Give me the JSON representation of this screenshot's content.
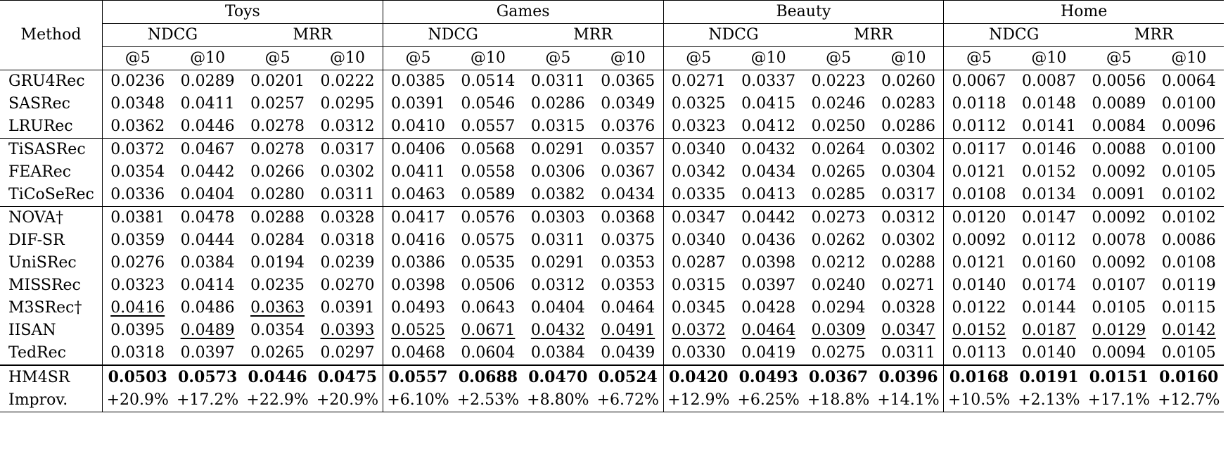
{
  "method_label": "Method",
  "datasets": [
    "Toys",
    "Games",
    "Beauty",
    "Home"
  ],
  "metrics": [
    "NDCG",
    "MRR"
  ],
  "cutoffs": [
    "@5",
    "@10"
  ],
  "groups": [
    [
      {
        "name": "GRU4Rec",
        "values": [
          "0.0236",
          "0.0289",
          "0.0201",
          "0.0222",
          "0.0385",
          "0.0514",
          "0.0311",
          "0.0365",
          "0.0271",
          "0.0337",
          "0.0223",
          "0.0260",
          "0.0067",
          "0.0087",
          "0.0056",
          "0.0064"
        ]
      },
      {
        "name": "SASRec",
        "values": [
          "0.0348",
          "0.0411",
          "0.0257",
          "0.0295",
          "0.0391",
          "0.0546",
          "0.0286",
          "0.0349",
          "0.0325",
          "0.0415",
          "0.0246",
          "0.0283",
          "0.0118",
          "0.0148",
          "0.0089",
          "0.0100"
        ]
      },
      {
        "name": "LRURec",
        "values": [
          "0.0362",
          "0.0446",
          "0.0278",
          "0.0312",
          "0.0410",
          "0.0557",
          "0.0315",
          "0.0376",
          "0.0323",
          "0.0412",
          "0.0250",
          "0.0286",
          "0.0112",
          "0.0141",
          "0.0084",
          "0.0096"
        ]
      }
    ],
    [
      {
        "name": "TiSASRec",
        "values": [
          "0.0372",
          "0.0467",
          "0.0278",
          "0.0317",
          "0.0406",
          "0.0568",
          "0.0291",
          "0.0357",
          "0.0340",
          "0.0432",
          "0.0264",
          "0.0302",
          "0.0117",
          "0.0146",
          "0.0088",
          "0.0100"
        ]
      },
      {
        "name": "FEARec",
        "values": [
          "0.0354",
          "0.0442",
          "0.0266",
          "0.0302",
          "0.0411",
          "0.0558",
          "0.0306",
          "0.0367",
          "0.0342",
          "0.0434",
          "0.0265",
          "0.0304",
          "0.0121",
          "0.0152",
          "0.0092",
          "0.0105"
        ]
      },
      {
        "name": "TiCoSeRec",
        "values": [
          "0.0336",
          "0.0404",
          "0.0280",
          "0.0311",
          "0.0463",
          "0.0589",
          "0.0382",
          "0.0434",
          "0.0335",
          "0.0413",
          "0.0285",
          "0.0317",
          "0.0108",
          "0.0134",
          "0.0091",
          "0.0102"
        ]
      }
    ],
    [
      {
        "name": "NOVA†",
        "values": [
          "0.0381",
          "0.0478",
          "0.0288",
          "0.0328",
          "0.0417",
          "0.0576",
          "0.0303",
          "0.0368",
          "0.0347",
          "0.0442",
          "0.0273",
          "0.0312",
          "0.0120",
          "0.0147",
          "0.0092",
          "0.0102"
        ]
      },
      {
        "name": "DIF-SR",
        "values": [
          "0.0359",
          "0.0444",
          "0.0284",
          "0.0318",
          "0.0416",
          "0.0575",
          "0.0311",
          "0.0375",
          "0.0340",
          "0.0436",
          "0.0262",
          "0.0302",
          "0.0092",
          "0.0112",
          "0.0078",
          "0.0086"
        ]
      },
      {
        "name": "UniSRec",
        "values": [
          "0.0276",
          "0.0384",
          "0.0194",
          "0.0239",
          "0.0386",
          "0.0535",
          "0.0291",
          "0.0353",
          "0.0287",
          "0.0398",
          "0.0212",
          "0.0288",
          "0.0121",
          "0.0160",
          "0.0092",
          "0.0108"
        ]
      },
      {
        "name": "MISSRec",
        "values": [
          "0.0323",
          "0.0414",
          "0.0235",
          "0.0270",
          "0.0398",
          "0.0506",
          "0.0312",
          "0.0353",
          "0.0315",
          "0.0397",
          "0.0240",
          "0.0271",
          "0.0140",
          "0.0174",
          "0.0107",
          "0.0119"
        ]
      },
      {
        "name": "M3SRec†",
        "values": [
          "0.0416",
          "0.0486",
          "0.0363",
          "0.0391",
          "0.0493",
          "0.0643",
          "0.0404",
          "0.0464",
          "0.0345",
          "0.0428",
          "0.0294",
          "0.0328",
          "0.0122",
          "0.0144",
          "0.0105",
          "0.0115"
        ],
        "underline": [
          0,
          2
        ]
      },
      {
        "name": "IISAN",
        "values": [
          "0.0395",
          "0.0489",
          "0.0354",
          "0.0393",
          "0.0525",
          "0.0671",
          "0.0432",
          "0.0491",
          "0.0372",
          "0.0464",
          "0.0309",
          "0.0347",
          "0.0152",
          "0.0187",
          "0.0129",
          "0.0142"
        ],
        "underline": [
          1,
          3,
          4,
          5,
          6,
          7,
          8,
          9,
          10,
          11,
          12,
          13,
          14,
          15
        ]
      },
      {
        "name": "TedRec",
        "values": [
          "0.0318",
          "0.0397",
          "0.0265",
          "0.0297",
          "0.0468",
          "0.0604",
          "0.0384",
          "0.0439",
          "0.0330",
          "0.0419",
          "0.0275",
          "0.0311",
          "0.0113",
          "0.0140",
          "0.0094",
          "0.0105"
        ]
      }
    ],
    [
      {
        "name": "HM4SR",
        "values": [
          "0.0503",
          "0.0573",
          "0.0446",
          "0.0475",
          "0.0557",
          "0.0688",
          "0.0470",
          "0.0524",
          "0.0420",
          "0.0493",
          "0.0367",
          "0.0396",
          "0.0168",
          "0.0191",
          "0.0151",
          "0.0160"
        ],
        "bold": true
      },
      {
        "name": "Improv.",
        "values": [
          "+20.9%",
          "+17.2%",
          "+22.9%",
          "+20.9%",
          "+6.10%",
          "+2.53%",
          "+8.80%",
          "+6.72%",
          "+12.9%",
          "+6.25%",
          "+18.8%",
          "+14.1%",
          "+10.5%",
          "+2.13%",
          "+17.1%",
          "+12.7%"
        ]
      }
    ]
  ]
}
